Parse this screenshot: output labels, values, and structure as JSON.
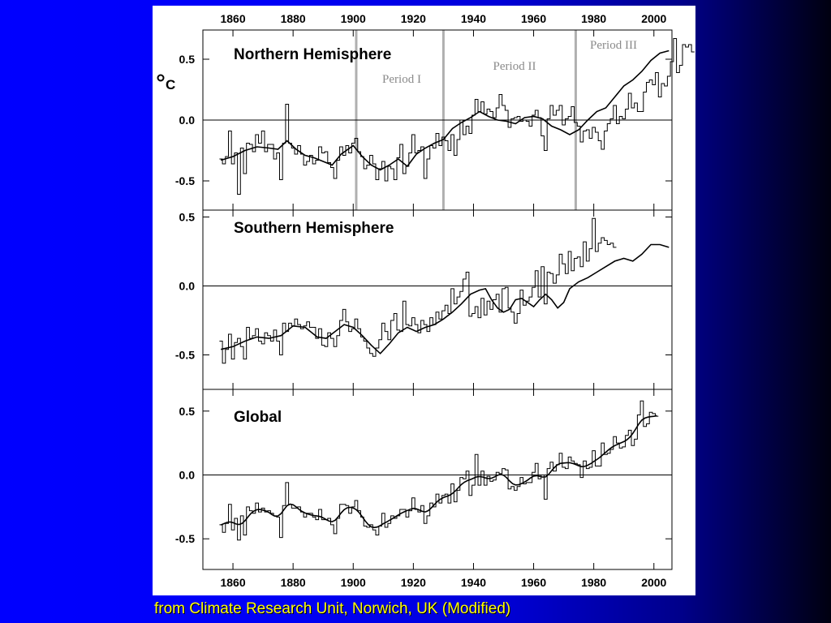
{
  "caption": "from Climate Research Unit, Norwich, UK (Modified)",
  "colors": {
    "background_left": "#0000ff",
    "background_right": "#000010",
    "caption": "#ffff00",
    "period_lines": "#b0b0b0",
    "period_text": "#8a8a8a"
  },
  "chart_data": [
    {
      "type": "line",
      "title": "Northern Hemisphere",
      "unit": "°C",
      "xlim": [
        1850,
        2006
      ],
      "ylim": [
        -0.74,
        0.74
      ],
      "xticks": [
        1860,
        1880,
        1900,
        1920,
        1940,
        1960,
        1980,
        2000
      ],
      "yticks": [
        -0.5,
        0.0,
        0.5
      ],
      "ytick_labels": [
        "-0.5",
        "0.0",
        "0.5"
      ],
      "zero_line": true,
      "periods": [
        {
          "label": "Period I",
          "start": 1901,
          "end": 1930
        },
        {
          "label": "Period II",
          "start": 1930,
          "end": 1974
        },
        {
          "label": "Period III",
          "start": 1974,
          "end": 2006
        }
      ],
      "start_year": 1856,
      "annual": [
        -0.32,
        -0.36,
        -0.3,
        -0.09,
        -0.36,
        -0.27,
        -0.61,
        -0.23,
        -0.44,
        -0.19,
        -0.2,
        -0.26,
        -0.12,
        -0.19,
        -0.09,
        -0.26,
        -0.2,
        -0.2,
        -0.32,
        -0.27,
        -0.49,
        -0.19,
        0.13,
        -0.19,
        -0.23,
        -0.28,
        -0.21,
        -0.28,
        -0.37,
        -0.34,
        -0.29,
        -0.36,
        -0.33,
        -0.22,
        -0.27,
        -0.26,
        -0.35,
        -0.39,
        -0.48,
        -0.33,
        -0.22,
        -0.29,
        -0.21,
        -0.27,
        -0.19,
        -0.15,
        -0.26,
        -0.3,
        -0.4,
        -0.37,
        -0.29,
        -0.36,
        -0.49,
        -0.4,
        -0.34,
        -0.5,
        -0.38,
        -0.4,
        -0.49,
        -0.31,
        -0.2,
        -0.44,
        -0.38,
        -0.27,
        -0.12,
        -0.27,
        -0.25,
        -0.22,
        -0.48,
        -0.32,
        -0.21,
        -0.23,
        -0.11,
        -0.21,
        -0.14,
        -0.17,
        -0.25,
        -0.12,
        -0.29,
        -0.16,
        0.0,
        -0.12,
        -0.05,
        -0.11,
        0.04,
        0.17,
        0.07,
        0.15,
        0.05,
        0.09,
        0.07,
        0.02,
        0.1,
        0.21,
        0.12,
        0.08,
        -0.06,
        0.01,
        0.02,
        0.03,
        -0.01,
        0.0,
        -0.01,
        -0.05,
        0.04,
        0.08,
        0.02,
        -0.13,
        -0.25,
        0.01,
        0.12,
        0.04,
        0.08,
        0.12,
        -0.04,
        0.01,
        0.03,
        0.11,
        -0.02,
        -0.05,
        -0.18,
        -0.09,
        -0.08,
        -0.15,
        -0.06,
        -0.1,
        -0.17,
        -0.24,
        -0.09,
        -0.03,
        0.01,
        0.12,
        -0.03,
        0.03,
        0.01,
        0.09,
        0.22,
        0.1,
        0.14,
        0.07,
        0.07,
        0.23,
        0.31,
        0.33,
        0.29,
        0.39,
        0.19,
        0.3,
        0.28,
        0.36,
        0.48,
        0.67,
        0.39,
        0.45,
        0.62,
        0.6,
        0.62,
        0.56
      ],
      "smooth_points": [
        [
          1856,
          -0.33
        ],
        [
          1860,
          -0.3
        ],
        [
          1864,
          -0.25
        ],
        [
          1868,
          -0.22
        ],
        [
          1872,
          -0.23
        ],
        [
          1875,
          -0.24
        ],
        [
          1878,
          -0.17
        ],
        [
          1881,
          -0.24
        ],
        [
          1884,
          -0.29
        ],
        [
          1887,
          -0.31
        ],
        [
          1890,
          -0.34
        ],
        [
          1893,
          -0.37
        ],
        [
          1896,
          -0.28
        ],
        [
          1900,
          -0.21
        ],
        [
          1903,
          -0.3
        ],
        [
          1906,
          -0.37
        ],
        [
          1909,
          -0.41
        ],
        [
          1912,
          -0.37
        ],
        [
          1915,
          -0.32
        ],
        [
          1918,
          -0.38
        ],
        [
          1921,
          -0.28
        ],
        [
          1924,
          -0.23
        ],
        [
          1927,
          -0.19
        ],
        [
          1930,
          -0.16
        ],
        [
          1933,
          -0.07
        ],
        [
          1936,
          -0.02
        ],
        [
          1939,
          0.02
        ],
        [
          1942,
          0.07
        ],
        [
          1945,
          0.03
        ],
        [
          1948,
          0.0
        ],
        [
          1951,
          -0.01
        ],
        [
          1954,
          -0.03
        ],
        [
          1957,
          0.02
        ],
        [
          1960,
          0.03
        ],
        [
          1963,
          0.01
        ],
        [
          1966,
          -0.05
        ],
        [
          1969,
          -0.08
        ],
        [
          1972,
          -0.12
        ],
        [
          1975,
          -0.08
        ],
        [
          1978,
          0.0
        ],
        [
          1981,
          0.07
        ],
        [
          1984,
          0.1
        ],
        [
          1987,
          0.19
        ],
        [
          1990,
          0.28
        ],
        [
          1993,
          0.33
        ],
        [
          1996,
          0.4
        ],
        [
          1999,
          0.49
        ],
        [
          2002,
          0.55
        ],
        [
          2005,
          0.57
        ]
      ]
    },
    {
      "type": "line",
      "title": "Southern Hemisphere",
      "xlim": [
        1850,
        2006
      ],
      "ylim": [
        -0.75,
        0.55
      ],
      "xticks": [
        1860,
        1880,
        1900,
        1920,
        1940,
        1960,
        1980,
        2000
      ],
      "yticks": [
        -0.5,
        0.0,
        0.5
      ],
      "ytick_labels": [
        "-0.5",
        "0.0",
        "0.5"
      ],
      "zero_line": true,
      "start_year": 1856,
      "annual": [
        -0.4,
        -0.56,
        -0.46,
        -0.35,
        -0.53,
        -0.41,
        -0.38,
        -0.44,
        -0.53,
        -0.3,
        -0.38,
        -0.36,
        -0.31,
        -0.4,
        -0.42,
        -0.34,
        -0.36,
        -0.4,
        -0.32,
        -0.4,
        -0.5,
        -0.27,
        -0.33,
        -0.27,
        -0.29,
        -0.24,
        -0.28,
        -0.31,
        -0.29,
        -0.26,
        -0.3,
        -0.3,
        -0.38,
        -0.31,
        -0.43,
        -0.44,
        -0.34,
        -0.38,
        -0.44,
        -0.36,
        -0.25,
        -0.17,
        -0.26,
        -0.33,
        -0.31,
        -0.24,
        -0.31,
        -0.37,
        -0.4,
        -0.45,
        -0.49,
        -0.51,
        -0.45,
        -0.39,
        -0.27,
        -0.33,
        -0.39,
        -0.25,
        -0.2,
        -0.32,
        -0.33,
        -0.11,
        -0.28,
        -0.29,
        -0.23,
        -0.28,
        -0.34,
        -0.25,
        -0.28,
        -0.33,
        -0.23,
        -0.28,
        -0.19,
        -0.24,
        -0.18,
        -0.14,
        -0.2,
        -0.02,
        -0.13,
        -0.08,
        -0.04,
        0.05,
        0.1,
        -0.22,
        -0.2,
        -0.15,
        -0.23,
        -0.09,
        -0.21,
        -0.11,
        -0.17,
        -0.1,
        -0.06,
        -0.19,
        -0.02,
        -0.01,
        -0.16,
        -0.19,
        -0.27,
        -0.2,
        -0.03,
        -0.14,
        -0.11,
        -0.08,
        -0.01,
        0.11,
        -0.08,
        0.14,
        -0.13,
        0.1,
        0.09,
        0.02,
        0.08,
        0.23,
        0.16,
        0.09,
        0.25,
        0.11,
        0.2,
        0.21,
        0.14,
        0.32,
        0.18,
        0.27,
        0.49,
        0.25,
        0.31,
        0.35,
        0.33,
        0.3,
        0.31,
        0.28
      ],
      "smooth_points": [
        [
          1856,
          -0.46
        ],
        [
          1860,
          -0.44
        ],
        [
          1864,
          -0.4
        ],
        [
          1868,
          -0.37
        ],
        [
          1872,
          -0.38
        ],
        [
          1876,
          -0.36
        ],
        [
          1880,
          -0.29
        ],
        [
          1884,
          -0.3
        ],
        [
          1888,
          -0.37
        ],
        [
          1891,
          -0.38
        ],
        [
          1894,
          -0.33
        ],
        [
          1897,
          -0.28
        ],
        [
          1900,
          -0.3
        ],
        [
          1903,
          -0.36
        ],
        [
          1906,
          -0.43
        ],
        [
          1909,
          -0.49
        ],
        [
          1912,
          -0.42
        ],
        [
          1915,
          -0.34
        ],
        [
          1918,
          -0.3
        ],
        [
          1921,
          -0.33
        ],
        [
          1924,
          -0.3
        ],
        [
          1927,
          -0.28
        ],
        [
          1930,
          -0.24
        ],
        [
          1933,
          -0.19
        ],
        [
          1936,
          -0.13
        ],
        [
          1939,
          -0.06
        ],
        [
          1942,
          -0.03
        ],
        [
          1944,
          -0.02
        ],
        [
          1946,
          -0.1
        ],
        [
          1948,
          -0.16
        ],
        [
          1950,
          -0.19
        ],
        [
          1952,
          -0.17
        ],
        [
          1954,
          -0.1
        ],
        [
          1956,
          -0.09
        ],
        [
          1958,
          -0.12
        ],
        [
          1960,
          -0.15
        ],
        [
          1962,
          -0.1
        ],
        [
          1964,
          -0.06
        ],
        [
          1966,
          -0.1
        ],
        [
          1968,
          -0.16
        ],
        [
          1970,
          -0.12
        ],
        [
          1972,
          -0.02
        ],
        [
          1975,
          0.03
        ],
        [
          1978,
          0.06
        ],
        [
          1981,
          0.1
        ],
        [
          1984,
          0.14
        ],
        [
          1987,
          0.18
        ],
        [
          1990,
          0.2
        ],
        [
          1993,
          0.18
        ],
        [
          1996,
          0.23
        ],
        [
          1999,
          0.3
        ],
        [
          2002,
          0.3
        ],
        [
          2005,
          0.28
        ]
      ]
    },
    {
      "type": "line",
      "title": "Global",
      "xlim": [
        1850,
        2006
      ],
      "ylim": [
        -0.74,
        0.67
      ],
      "xticks": [
        1860,
        1880,
        1900,
        1920,
        1940,
        1960,
        1980,
        2000
      ],
      "xtick_labels": [
        "1860",
        "1880",
        "1900",
        "1920",
        "1940",
        "1960",
        "1980",
        "2000"
      ],
      "yticks": [
        -0.5,
        0.0,
        0.5
      ],
      "ytick_labels": [
        "-0.5",
        "0.0",
        "0.5"
      ],
      "zero_line": true,
      "start_year": 1856,
      "annual": [
        -0.39,
        -0.45,
        -0.38,
        -0.23,
        -0.43,
        -0.34,
        -0.51,
        -0.32,
        -0.47,
        -0.25,
        -0.28,
        -0.3,
        -0.22,
        -0.29,
        -0.26,
        -0.29,
        -0.28,
        -0.3,
        -0.32,
        -0.33,
        -0.49,
        -0.24,
        -0.06,
        -0.23,
        -0.26,
        -0.26,
        -0.25,
        -0.29,
        -0.33,
        -0.3,
        -0.3,
        -0.33,
        -0.35,
        -0.27,
        -0.35,
        -0.35,
        -0.34,
        -0.39,
        -0.46,
        -0.34,
        -0.23,
        -0.23,
        -0.24,
        -0.3,
        -0.25,
        -0.2,
        -0.28,
        -0.33,
        -0.4,
        -0.41,
        -0.39,
        -0.43,
        -0.47,
        -0.4,
        -0.3,
        -0.41,
        -0.38,
        -0.32,
        -0.34,
        -0.32,
        -0.27,
        -0.27,
        -0.33,
        -0.28,
        -0.18,
        -0.27,
        -0.29,
        -0.24,
        -0.38,
        -0.32,
        -0.22,
        -0.25,
        -0.15,
        -0.22,
        -0.16,
        -0.15,
        -0.22,
        -0.07,
        -0.21,
        -0.12,
        -0.02,
        -0.03,
        0.03,
        -0.16,
        -0.08,
        0.16,
        -0.08,
        0.03,
        -0.08,
        -0.01,
        -0.05,
        -0.04,
        0.02,
        0.01,
        0.05,
        0.04,
        -0.11,
        -0.09,
        -0.12,
        -0.09,
        -0.02,
        -0.07,
        -0.06,
        -0.06,
        0.02,
        0.09,
        -0.03,
        0.0,
        -0.19,
        0.05,
        0.1,
        0.03,
        0.08,
        0.17,
        0.06,
        0.05,
        0.14,
        0.11,
        0.09,
        0.08,
        -0.02,
        0.11,
        0.05,
        0.06,
        0.19,
        0.07,
        0.07,
        0.25,
        0.16,
        0.17,
        0.2,
        0.3,
        0.25,
        0.21,
        0.22,
        0.31,
        0.35,
        0.23,
        0.28,
        0.47,
        0.58,
        0.38,
        0.4,
        0.49,
        0.48,
        0.46
      ]
    }
  ]
}
